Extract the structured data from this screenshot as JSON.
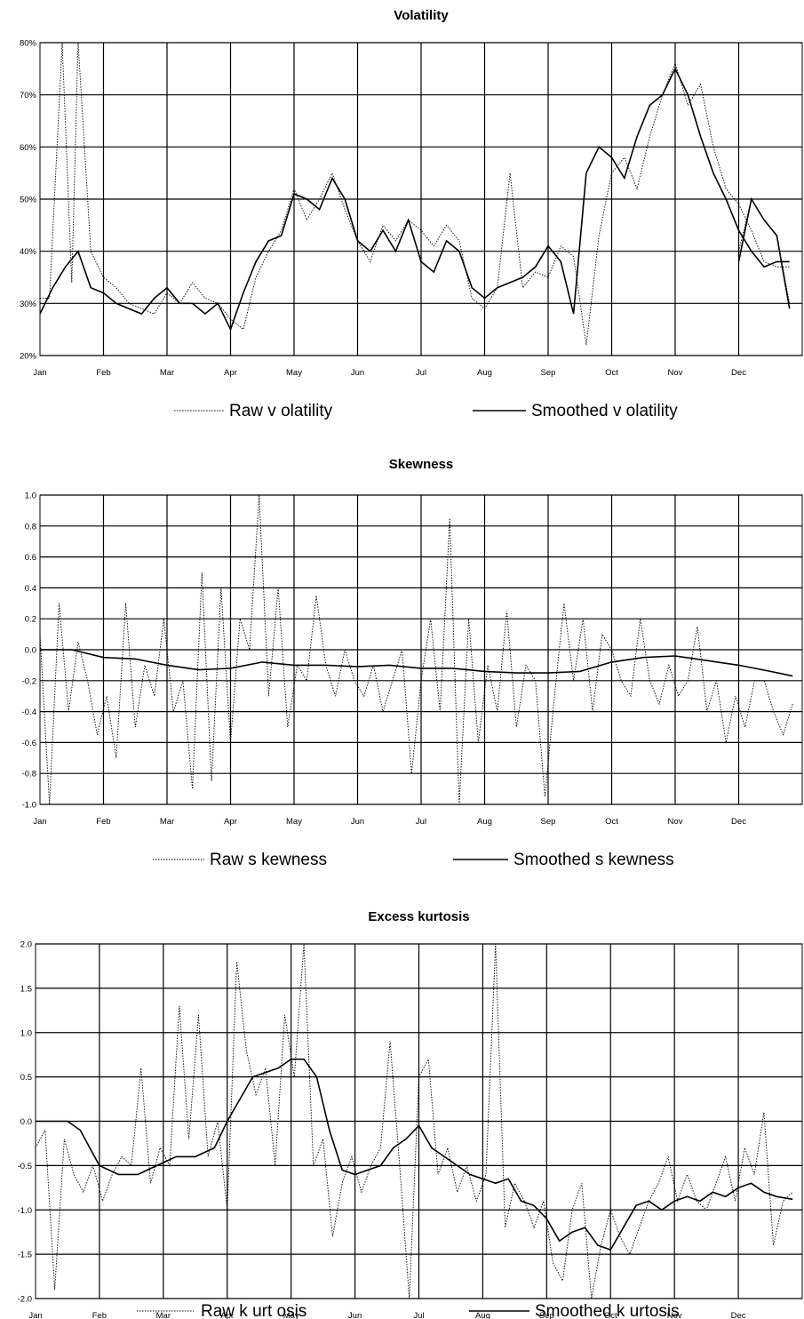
{
  "chart_data": [
    {
      "type": "line",
      "title": "Volatility",
      "xlabel": "",
      "ylabel": "",
      "categories": [
        "Jan",
        "Feb",
        "Mar",
        "Apr",
        "May",
        "Jun",
        "Jul",
        "Aug",
        "Sep",
        "Oct",
        "Nov",
        "Dec"
      ],
      "ylim": [
        0.2,
        0.8
      ],
      "yticks": [
        "20%",
        "30%",
        "40%",
        "50%",
        "60%",
        "70%",
        "80%"
      ],
      "grid": true,
      "legend": "bottom",
      "series": [
        {
          "name": "Raw v olatility",
          "style": "dotted",
          "x": [
            0,
            0.15,
            0.35,
            0.5,
            0.6,
            0.8,
            1.0,
            1.2,
            1.4,
            1.6,
            1.8,
            2.0,
            2.2,
            2.4,
            2.6,
            2.8,
            3.0,
            3.2,
            3.4,
            3.6,
            3.8,
            4.0,
            4.2,
            4.4,
            4.6,
            4.8,
            5.0,
            5.2,
            5.4,
            5.6,
            5.8,
            6.0,
            6.2,
            6.4,
            6.6,
            6.8,
            7.0,
            7.2,
            7.4,
            7.6,
            7.8,
            8.0,
            8.2,
            8.4,
            8.6,
            8.8,
            9.0,
            9.2,
            9.4,
            9.6,
            9.8,
            10.0,
            10.2,
            10.4,
            10.6,
            10.8,
            11.0,
            11.2,
            11.4,
            11.6,
            11.8
          ],
          "y": [
            0.31,
            0.31,
            0.95,
            0.34,
            1.0,
            0.4,
            0.35,
            0.33,
            0.3,
            0.29,
            0.28,
            0.32,
            0.3,
            0.34,
            0.31,
            0.3,
            0.27,
            0.25,
            0.35,
            0.4,
            0.44,
            0.52,
            0.46,
            0.5,
            0.55,
            0.48,
            0.42,
            0.38,
            0.45,
            0.42,
            0.46,
            0.44,
            0.41,
            0.45,
            0.42,
            0.31,
            0.29,
            0.33,
            0.55,
            0.33,
            0.36,
            0.35,
            0.41,
            0.39,
            0.22,
            0.43,
            0.55,
            0.58,
            0.52,
            0.62,
            0.7,
            0.76,
            0.68,
            0.72,
            0.6,
            0.52,
            0.49,
            0.44,
            0.38,
            0.37,
            0.37
          ],
          "x2": [
            11.0,
            11.2,
            11.4,
            11.6,
            11.8
          ],
          "y2": [
            0.4,
            0.5,
            0.46,
            0.43,
            0.3
          ]
        },
        {
          "name": "Smoothed v olatility",
          "style": "solid",
          "x": [
            0,
            0.2,
            0.4,
            0.6,
            0.8,
            1.0,
            1.2,
            1.4,
            1.6,
            1.8,
            2.0,
            2.2,
            2.4,
            2.6,
            2.8,
            3.0,
            3.2,
            3.4,
            3.6,
            3.8,
            4.0,
            4.2,
            4.4,
            4.6,
            4.8,
            5.0,
            5.2,
            5.4,
            5.6,
            5.8,
            6.0,
            6.2,
            6.4,
            6.6,
            6.8,
            7.0,
            7.2,
            7.4,
            7.6,
            7.8,
            8.0,
            8.2,
            8.4,
            8.6,
            8.8,
            9.0,
            9.2,
            9.4,
            9.6,
            9.8,
            10.0,
            10.2,
            10.4,
            10.6,
            10.8,
            11.0,
            11.2,
            11.4,
            11.6,
            11.8
          ],
          "y": [
            0.28,
            0.33,
            0.37,
            0.4,
            0.33,
            0.32,
            0.3,
            0.29,
            0.28,
            0.31,
            0.33,
            0.3,
            0.3,
            0.28,
            0.3,
            0.25,
            0.32,
            0.38,
            0.42,
            0.43,
            0.51,
            0.5,
            0.48,
            0.54,
            0.5,
            0.42,
            0.4,
            0.44,
            0.4,
            0.46,
            0.38,
            0.36,
            0.42,
            0.4,
            0.33,
            0.31,
            0.33,
            0.34,
            0.35,
            0.37,
            0.41,
            0.38,
            0.28,
            0.55,
            0.6,
            0.58,
            0.54,
            0.62,
            0.68,
            0.7,
            0.75,
            0.7,
            0.62,
            0.55,
            0.5,
            0.44,
            0.4,
            0.37,
            0.38,
            0.38
          ],
          "x2": [
            11.0,
            11.2,
            11.4,
            11.6,
            11.8
          ],
          "y2": [
            0.38,
            0.5,
            0.46,
            0.43,
            0.29
          ]
        }
      ]
    },
    {
      "type": "line",
      "title": "Skewness",
      "xlabel": "",
      "ylabel": "",
      "categories": [
        "Jan",
        "Feb",
        "Mar",
        "Apr",
        "May",
        "Jun",
        "Jul",
        "Aug",
        "Sep",
        "Oct",
        "Nov",
        "Dec"
      ],
      "ylim": [
        -1.0,
        1.0
      ],
      "yticks": [
        "-1.0",
        "-0.8",
        "-0.6",
        "-0.4",
        "-0.2",
        "0.0",
        "0.2",
        "0.4",
        "0.6",
        "0.8",
        "1.0"
      ],
      "grid": true,
      "legend": "bottom",
      "series": [
        {
          "name": "Raw s kewness",
          "style": "dotted",
          "x": [
            0,
            0.15,
            0.3,
            0.45,
            0.6,
            0.75,
            0.9,
            1.05,
            1.2,
            1.35,
            1.5,
            1.65,
            1.8,
            1.95,
            2.1,
            2.25,
            2.4,
            2.55,
            2.7,
            2.85,
            3.0,
            3.15,
            3.3,
            3.45,
            3.6,
            3.75,
            3.9,
            4.05,
            4.2,
            4.35,
            4.5,
            4.65,
            4.8,
            4.95,
            5.1,
            5.25,
            5.4,
            5.55,
            5.7,
            5.85,
            6.0,
            6.15,
            6.3,
            6.45,
            6.6,
            6.75,
            6.9,
            7.05,
            7.2,
            7.35,
            7.5,
            7.65,
            7.8,
            7.95,
            8.1,
            8.25,
            8.4,
            8.55,
            8.7,
            8.85,
            9.0,
            9.15,
            9.3,
            9.45,
            9.6,
            9.75,
            9.9,
            10.05,
            10.2,
            10.35,
            10.5,
            10.65,
            10.8,
            10.95,
            11.1,
            11.25,
            11.4,
            11.55,
            11.7,
            11.85
          ],
          "y": [
            0.1,
            -1.0,
            0.3,
            -0.4,
            0.05,
            -0.2,
            -0.55,
            -0.3,
            -0.7,
            0.3,
            -0.5,
            -0.1,
            -0.3,
            0.2,
            -0.4,
            -0.2,
            -0.9,
            0.5,
            -0.85,
            0.4,
            -0.6,
            0.2,
            0.0,
            1.0,
            -0.3,
            0.4,
            -0.5,
            -0.1,
            -0.2,
            0.35,
            -0.1,
            -0.3,
            0.0,
            -0.2,
            -0.3,
            -0.1,
            -0.4,
            -0.2,
            0.0,
            -0.8,
            -0.2,
            0.2,
            -0.4,
            0.85,
            -1.0,
            0.2,
            -0.6,
            -0.1,
            -0.4,
            0.25,
            -0.5,
            -0.1,
            -0.2,
            -0.95,
            -0.3,
            0.3,
            -0.2,
            0.2,
            -0.4,
            0.1,
            0.0,
            -0.2,
            -0.3,
            0.2,
            -0.2,
            -0.35,
            -0.1,
            -0.3,
            -0.2,
            0.15,
            -0.4,
            -0.2,
            -0.6,
            -0.3,
            -0.5,
            -0.2,
            -0.2,
            -0.4,
            -0.55,
            -0.35
          ]
        },
        {
          "name": "Smoothed s kewness",
          "style": "solid",
          "x": [
            0,
            0.5,
            1.0,
            1.5,
            2.0,
            2.5,
            3.0,
            3.5,
            4.0,
            4.5,
            5.0,
            5.5,
            6.0,
            6.5,
            7.0,
            7.5,
            8.0,
            8.5,
            9.0,
            9.5,
            10.0,
            10.5,
            11.0,
            11.5,
            11.85
          ],
          "y": [
            0.0,
            0.0,
            -0.05,
            -0.06,
            -0.1,
            -0.13,
            -0.12,
            -0.08,
            -0.1,
            -0.1,
            -0.11,
            -0.1,
            -0.12,
            -0.12,
            -0.14,
            -0.15,
            -0.15,
            -0.14,
            -0.08,
            -0.05,
            -0.04,
            -0.07,
            -0.1,
            -0.14,
            -0.17
          ]
        }
      ]
    },
    {
      "type": "line",
      "title": "Excess kurtosis",
      "xlabel": "",
      "ylabel": "",
      "categories": [
        "Jan",
        "Feb",
        "Mar",
        "Apr",
        "May",
        "Jun",
        "Jul",
        "Aug",
        "Sep",
        "Oct",
        "Nov",
        "Dec"
      ],
      "ylim": [
        -2.0,
        2.0
      ],
      "yticks": [
        "-2.0",
        "-1.5",
        "-1.0",
        "-0.5",
        "0.0",
        "0.5",
        "1.0",
        "1.5",
        "2.0"
      ],
      "grid": true,
      "legend": "bottom",
      "series": [
        {
          "name": "Raw k urt osis",
          "style": "dotted",
          "x": [
            0,
            0.15,
            0.3,
            0.45,
            0.6,
            0.75,
            0.9,
            1.05,
            1.2,
            1.35,
            1.5,
            1.65,
            1.8,
            1.95,
            2.1,
            2.25,
            2.4,
            2.55,
            2.7,
            2.85,
            3.0,
            3.15,
            3.3,
            3.45,
            3.6,
            3.75,
            3.9,
            4.05,
            4.2,
            4.35,
            4.5,
            4.65,
            4.8,
            4.95,
            5.1,
            5.25,
            5.4,
            5.55,
            5.7,
            5.85,
            6.0,
            6.15,
            6.3,
            6.45,
            6.6,
            6.75,
            6.9,
            7.05,
            7.2,
            7.35,
            7.5,
            7.65,
            7.8,
            7.95,
            8.1,
            8.25,
            8.4,
            8.55,
            8.7,
            8.85,
            9.0,
            9.15,
            9.3,
            9.45,
            9.6,
            9.75,
            9.9,
            10.05,
            10.2,
            10.35,
            10.5,
            10.65,
            10.8,
            10.95,
            11.1,
            11.25,
            11.4,
            11.55,
            11.7,
            11.85
          ],
          "y": [
            -0.3,
            -0.1,
            -1.9,
            -0.2,
            -0.6,
            -0.8,
            -0.5,
            -0.9,
            -0.6,
            -0.4,
            -0.5,
            0.6,
            -0.7,
            -0.3,
            -0.5,
            1.3,
            -0.2,
            1.2,
            -0.4,
            0.0,
            -1.0,
            1.8,
            0.8,
            0.3,
            0.6,
            -0.5,
            1.2,
            0.5,
            2.0,
            -0.5,
            -0.2,
            -1.3,
            -0.7,
            -0.4,
            -0.8,
            -0.5,
            -0.3,
            0.9,
            -0.5,
            -2.0,
            0.5,
            0.7,
            -0.6,
            -0.3,
            -0.8,
            -0.5,
            -0.9,
            -0.6,
            2.0,
            -1.2,
            -0.7,
            -0.9,
            -1.2,
            -0.9,
            -1.6,
            -1.8,
            -1.0,
            -0.7,
            -2.0,
            -1.4,
            -1.0,
            -1.3,
            -1.5,
            -1.2,
            -0.9,
            -0.7,
            -0.4,
            -0.9,
            -0.6,
            -0.9,
            -1.0,
            -0.7,
            -0.4,
            -0.9,
            -0.3,
            -0.6,
            0.1,
            -1.4,
            -0.9,
            -0.8
          ]
        },
        {
          "name": "Smoothed k urtosis",
          "style": "solid",
          "x": [
            0,
            0.3,
            0.5,
            0.7,
            1.0,
            1.3,
            1.6,
            1.9,
            2.2,
            2.5,
            2.8,
            3.0,
            3.2,
            3.4,
            3.6,
            3.8,
            4.0,
            4.2,
            4.4,
            4.6,
            4.8,
            5.0,
            5.2,
            5.4,
            5.6,
            5.8,
            6.0,
            6.2,
            6.4,
            6.6,
            6.8,
            7.0,
            7.2,
            7.4,
            7.6,
            7.8,
            8.0,
            8.2,
            8.4,
            8.6,
            8.8,
            9.0,
            9.2,
            9.4,
            9.6,
            9.8,
            10.0,
            10.2,
            10.4,
            10.6,
            10.8,
            11.0,
            11.2,
            11.4,
            11.6,
            11.85
          ],
          "y": [
            0.0,
            0.0,
            0.0,
            -0.1,
            -0.5,
            -0.6,
            -0.6,
            -0.5,
            -0.4,
            -0.4,
            -0.3,
            0.0,
            0.25,
            0.5,
            0.55,
            0.6,
            0.7,
            0.7,
            0.5,
            -0.1,
            -0.55,
            -0.6,
            -0.55,
            -0.5,
            -0.3,
            -0.2,
            -0.05,
            -0.3,
            -0.4,
            -0.5,
            -0.6,
            -0.65,
            -0.7,
            -0.65,
            -0.9,
            -0.95,
            -1.1,
            -1.35,
            -1.25,
            -1.2,
            -1.4,
            -1.45,
            -1.2,
            -0.95,
            -0.9,
            -1.0,
            -0.9,
            -0.85,
            -0.9,
            -0.8,
            -0.85,
            -0.75,
            -0.7,
            -0.8,
            -0.85,
            -0.88
          ]
        }
      ]
    }
  ]
}
